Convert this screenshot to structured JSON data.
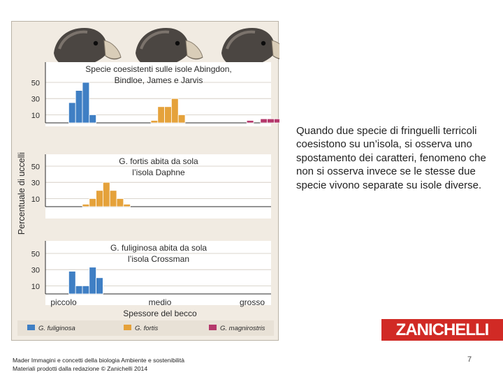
{
  "caption": "Quando due specie di fringuelli terricoli coesistono su un’isola, si osserva uno spostamento dei caratteri, fenomeno che non si osserva invece se le stesse due specie vivono separate su isole diverse.",
  "logo_text": "ZANICHELLI",
  "page_number": "7",
  "footer": {
    "line1": "Mader Immagini e concetti della biologia Ambiente e sostenibilità",
    "line2": "Materiali prodotti dalla redazione © Zanichelli 2014"
  },
  "colors": {
    "fuliginosa": "#3f7fc4",
    "fortis": "#e5a23b",
    "magnirostris": "#b5396c",
    "panel_bg": "#f1ebe2",
    "brand_red": "#d12a25"
  },
  "icons": [
    "finch-head-icon",
    "finch-head-icon",
    "finch-head-icon"
  ],
  "chart_data": {
    "type": "bar",
    "ylabel": "Percentuale di uccelli",
    "xlabel": "Spessore del becco",
    "x_tick_labels": [
      "piccolo",
      "medio",
      "grosso"
    ],
    "y_ticks": [
      10,
      30,
      50
    ],
    "ylim": [
      0,
      60
    ],
    "legend": {
      "placement": "bottom",
      "entries": [
        "G. fuliginosa",
        "G. fortis",
        "G. magnirostris"
      ]
    },
    "panels": [
      {
        "title_line1": "Specie coesistenti sulle isole Abingdon,",
        "title_line2": "Bindloe, James e Jarvis",
        "series": [
          {
            "name": "G. fuliginosa",
            "start_bin": 3,
            "values": [
              25,
              40,
              50,
              10
            ]
          },
          {
            "name": "G. fortis",
            "start_bin": 15,
            "values": [
              3,
              20,
              20,
              30,
              10
            ]
          },
          {
            "name": "G. magnirostris",
            "start_bin": 29,
            "values": [
              3,
              0,
              5,
              5,
              5,
              5,
              10,
              8,
              12,
              3,
              3
            ]
          }
        ]
      },
      {
        "title_line1": "G. fortis abita da sola",
        "title_line2": "l’isola Daphne",
        "series": [
          {
            "name": "G. fortis",
            "start_bin": 5,
            "values": [
              3,
              10,
              20,
              30,
              20,
              10,
              3
            ]
          }
        ]
      },
      {
        "title_line1": "G. fuliginosa abita da sola",
        "title_line2": "l’isola Crossman",
        "series": [
          {
            "name": "G. fuliginosa",
            "start_bin": 3,
            "values": [
              28,
              10,
              10,
              33,
              20
            ]
          }
        ]
      }
    ]
  }
}
